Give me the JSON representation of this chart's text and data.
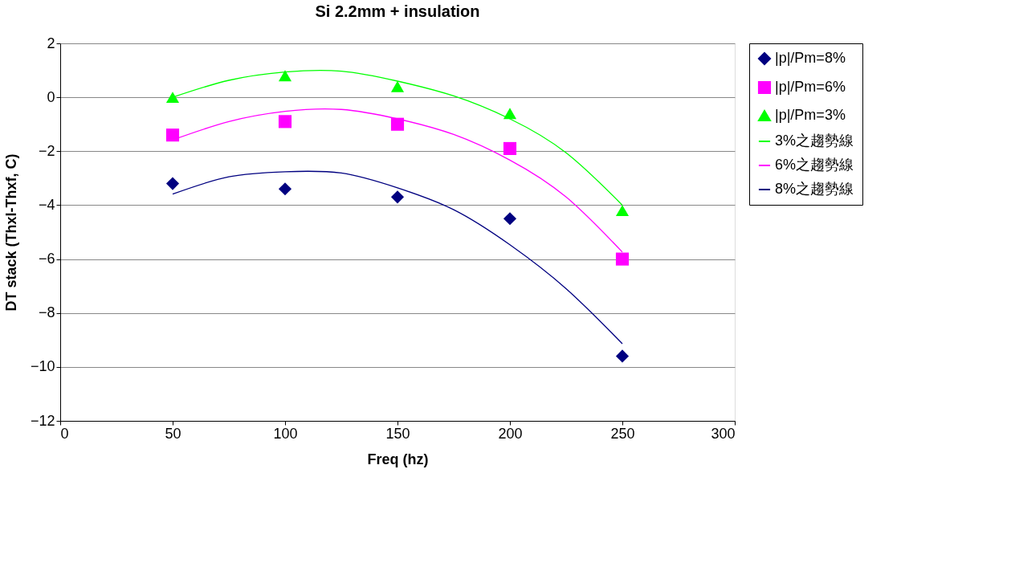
{
  "chart_data": {
    "type": "scatter",
    "title": "Si 2.2mm + insulation",
    "xlabel": "Freq (hz)",
    "ylabel": "DT stack (Thxl-Thxf, C)",
    "x": [
      50,
      100,
      150,
      200,
      250
    ],
    "series": [
      {
        "name": "|p|/Pm=8%",
        "marker": "diamond",
        "color": "#000080",
        "values": [
          -3.2,
          -3.4,
          -3.7,
          -4.5,
          -9.6
        ]
      },
      {
        "name": "|p|/Pm=6%",
        "marker": "square",
        "color": "#ff00ff",
        "values": [
          -1.4,
          -0.9,
          -1.0,
          -1.9,
          -6.0
        ]
      },
      {
        "name": "|p|/Pm=3%",
        "marker": "triangle",
        "color": "#00ff00",
        "values": [
          0.0,
          0.8,
          0.4,
          -0.6,
          -4.2
        ]
      },
      {
        "name": "3%之趨勢線",
        "type": "line",
        "color": "#00ff00",
        "x": [
          50,
          75,
          100,
          125,
          150,
          175,
          200,
          225,
          250
        ],
        "values": [
          0.0,
          0.63,
          0.94,
          0.97,
          0.6,
          0.05,
          -0.8,
          -2.06,
          -4.0
        ]
      },
      {
        "name": "6%之趨勢線",
        "type": "line",
        "color": "#ff00ff",
        "x": [
          50,
          75,
          100,
          125,
          150,
          175,
          200,
          225,
          250
        ],
        "values": [
          -1.58,
          -0.9,
          -0.52,
          -0.45,
          -0.8,
          -1.38,
          -2.33,
          -3.7,
          -5.74
        ]
      },
      {
        "name": "8%之趨勢線",
        "type": "line",
        "color": "#000080",
        "x": [
          50,
          75,
          100,
          125,
          150,
          175,
          200,
          225,
          250
        ],
        "values": [
          -3.59,
          -2.95,
          -2.76,
          -2.81,
          -3.36,
          -4.17,
          -5.47,
          -7.1,
          -9.14
        ]
      }
    ],
    "xlim": [
      0,
      300
    ],
    "xticks": [
      0,
      50,
      100,
      150,
      200,
      250,
      300
    ],
    "ylim": [
      -12,
      2
    ],
    "yticks": [
      -12,
      -10,
      -8,
      -6,
      -4,
      -2,
      0,
      2
    ],
    "grid": "y",
    "legend": "top right"
  }
}
